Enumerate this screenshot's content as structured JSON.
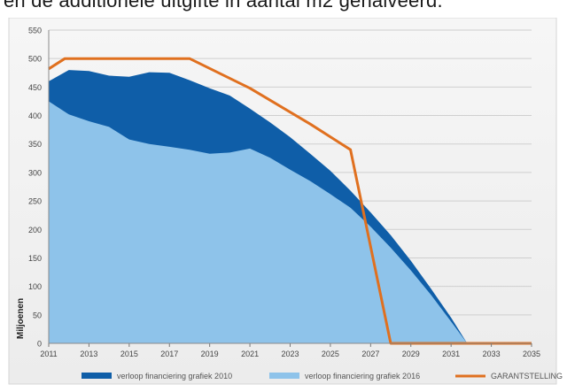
{
  "heading_fragment": "en de additionele uitgifte in aantal m2 gehalveerd.",
  "chart_data": {
    "type": "area",
    "title": "",
    "xlabel": "",
    "ylabel": "Miljoenen",
    "xlim": [
      2011,
      2035
    ],
    "ylim": [
      0,
      550
    ],
    "x_ticks": [
      2011,
      2013,
      2015,
      2017,
      2019,
      2021,
      2023,
      2025,
      2027,
      2029,
      2031,
      2033,
      2035
    ],
    "y_ticks": [
      0,
      50,
      100,
      150,
      200,
      250,
      300,
      350,
      400,
      450,
      500,
      550
    ],
    "grid": true,
    "legend_position": "bottom",
    "series": [
      {
        "name": "verloop financiering grafiek 2010",
        "type": "area",
        "color": "#0f5ea8",
        "x": [
          2011,
          2012,
          2013,
          2014,
          2015,
          2016,
          2017,
          2018,
          2019,
          2020,
          2021,
          2022,
          2023,
          2024,
          2025,
          2026,
          2027,
          2028,
          2029,
          2030,
          2031,
          2031.8
        ],
        "values": [
          460,
          480,
          478,
          470,
          468,
          476,
          475,
          462,
          448,
          435,
          412,
          388,
          362,
          333,
          303,
          268,
          230,
          190,
          145,
          96,
          45,
          0
        ]
      },
      {
        "name": "verloop financiering grafiek 2016",
        "type": "area",
        "color": "#8ec3ea",
        "x": [
          2011,
          2012,
          2013,
          2014,
          2015,
          2016,
          2017,
          2018,
          2019,
          2020,
          2021,
          2022,
          2023,
          2024,
          2025,
          2026,
          2027,
          2028,
          2029,
          2030,
          2031,
          2031.8
        ],
        "values": [
          425,
          402,
          390,
          380,
          358,
          350,
          345,
          340,
          333,
          335,
          342,
          326,
          305,
          285,
          262,
          238,
          205,
          168,
          128,
          85,
          38,
          0
        ]
      },
      {
        "name": "GARANTSTELLING",
        "type": "line",
        "color": "#e0701f",
        "x": [
          2011,
          2011.8,
          2017,
          2018,
          2021,
          2024,
          2026,
          2028,
          2035
        ],
        "values": [
          482,
          500,
          500,
          500,
          448,
          385,
          340,
          0,
          0
        ]
      }
    ]
  }
}
